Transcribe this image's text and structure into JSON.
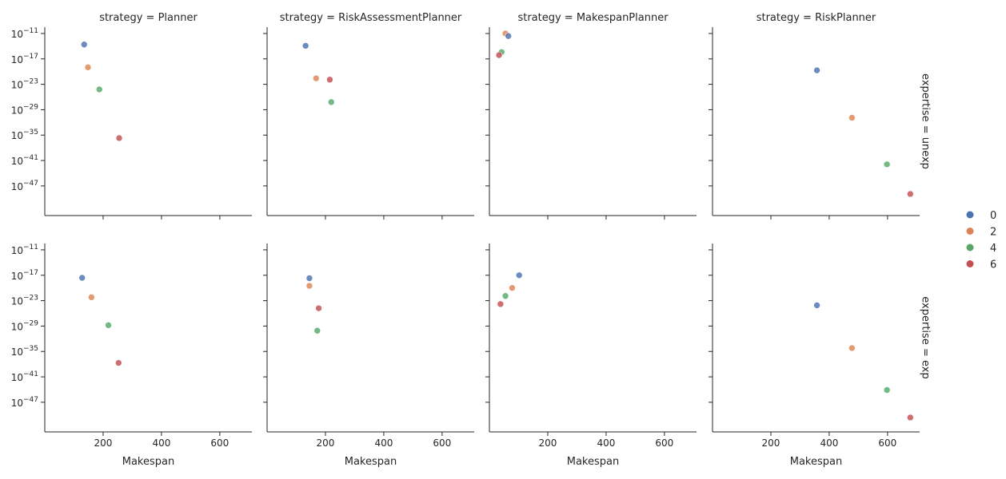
{
  "chart_data": {
    "type": "scatter",
    "facet": {
      "col_var": "strategy",
      "row_var": "expertise",
      "cols": [
        "Planner",
        "RiskAssessmentPlanner",
        "MakespanPlanner",
        "RiskPlanner"
      ],
      "rows": [
        "unexp",
        "exp"
      ],
      "col_titles": [
        "strategy =  Planner",
        "strategy =  RiskAssessmentPlanner",
        "strategy =  MakespanPlanner",
        "strategy =  RiskPlanner"
      ],
      "row_titles": [
        "expertise = unexp",
        "expertise = exp"
      ]
    },
    "xlabel": "Makespan",
    "ylabel": "",
    "xlim": [
      0,
      710
    ],
    "xticks": [
      200,
      400,
      600
    ],
    "xtick_labels": [
      "200",
      "400",
      "600"
    ],
    "yscale": "log",
    "ylim_exp10": [
      -54,
      -9.5
    ],
    "yticks_exp10": [
      -11,
      -17,
      -23,
      -29,
      -35,
      -41,
      -47
    ],
    "ytick_labels": [
      {
        "base": "10",
        "exp": "−11"
      },
      {
        "base": "10",
        "exp": "−17"
      },
      {
        "base": "10",
        "exp": "−23"
      },
      {
        "base": "10",
        "exp": "−29"
      },
      {
        "base": "10",
        "exp": "−35"
      },
      {
        "base": "10",
        "exp": "−41"
      },
      {
        "base": "10",
        "exp": "−47"
      }
    ],
    "legend": {
      "placement": "center-right",
      "entries": [
        {
          "label": "0",
          "color": "#4c72b0"
        },
        {
          "label": "2",
          "color": "#dd8452"
        },
        {
          "label": "4",
          "color": "#55a868"
        },
        {
          "label": "6",
          "color": "#c44e52"
        }
      ]
    },
    "panels": [
      {
        "row": "unexp",
        "col": "Planner",
        "points": [
          {
            "group": "0",
            "x": 135,
            "y_exp10": -13.6
          },
          {
            "group": "2",
            "x": 148,
            "y_exp10": -19.0
          },
          {
            "group": "4",
            "x": 187,
            "y_exp10": -24.2
          },
          {
            "group": "6",
            "x": 255,
            "y_exp10": -35.7
          }
        ]
      },
      {
        "row": "unexp",
        "col": "RiskAssessmentPlanner",
        "points": [
          {
            "group": "0",
            "x": 132,
            "y_exp10": -13.9
          },
          {
            "group": "2",
            "x": 168,
            "y_exp10": -21.6
          },
          {
            "group": "6",
            "x": 215,
            "y_exp10": -21.9
          },
          {
            "group": "4",
            "x": 220,
            "y_exp10": -27.2
          }
        ]
      },
      {
        "row": "unexp",
        "col": "MakespanPlanner",
        "points": [
          {
            "group": "2",
            "x": 55,
            "y_exp10": -11.0
          },
          {
            "group": "0",
            "x": 65,
            "y_exp10": -11.6
          },
          {
            "group": "4",
            "x": 42,
            "y_exp10": -15.4
          },
          {
            "group": "6",
            "x": 33,
            "y_exp10": -16.1
          }
        ]
      },
      {
        "row": "unexp",
        "col": "RiskPlanner",
        "points": [
          {
            "group": "0",
            "x": 358,
            "y_exp10": -19.7
          },
          {
            "group": "2",
            "x": 478,
            "y_exp10": -30.9
          },
          {
            "group": "4",
            "x": 598,
            "y_exp10": -41.9
          },
          {
            "group": "6",
            "x": 678,
            "y_exp10": -48.9
          }
        ]
      },
      {
        "row": "exp",
        "col": "Planner",
        "points": [
          {
            "group": "0",
            "x": 128,
            "y_exp10": -17.6
          },
          {
            "group": "2",
            "x": 160,
            "y_exp10": -22.2
          },
          {
            "group": "4",
            "x": 218,
            "y_exp10": -28.8
          },
          {
            "group": "6",
            "x": 253,
            "y_exp10": -37.7
          }
        ]
      },
      {
        "row": "exp",
        "col": "RiskAssessmentPlanner",
        "points": [
          {
            "group": "0",
            "x": 145,
            "y_exp10": -17.7
          },
          {
            "group": "2",
            "x": 145,
            "y_exp10": -19.5
          },
          {
            "group": "6",
            "x": 177,
            "y_exp10": -24.8
          },
          {
            "group": "4",
            "x": 172,
            "y_exp10": -30.1
          }
        ]
      },
      {
        "row": "exp",
        "col": "MakespanPlanner",
        "points": [
          {
            "group": "0",
            "x": 102,
            "y_exp10": -17.0
          },
          {
            "group": "2",
            "x": 78,
            "y_exp10": -20.0
          },
          {
            "group": "4",
            "x": 55,
            "y_exp10": -21.9
          },
          {
            "group": "6",
            "x": 38,
            "y_exp10": -23.8
          }
        ]
      },
      {
        "row": "exp",
        "col": "RiskPlanner",
        "points": [
          {
            "group": "0",
            "x": 358,
            "y_exp10": -24.1
          },
          {
            "group": "2",
            "x": 478,
            "y_exp10": -34.2
          },
          {
            "group": "4",
            "x": 598,
            "y_exp10": -44.1
          },
          {
            "group": "6",
            "x": 678,
            "y_exp10": -50.6
          }
        ]
      }
    ]
  }
}
